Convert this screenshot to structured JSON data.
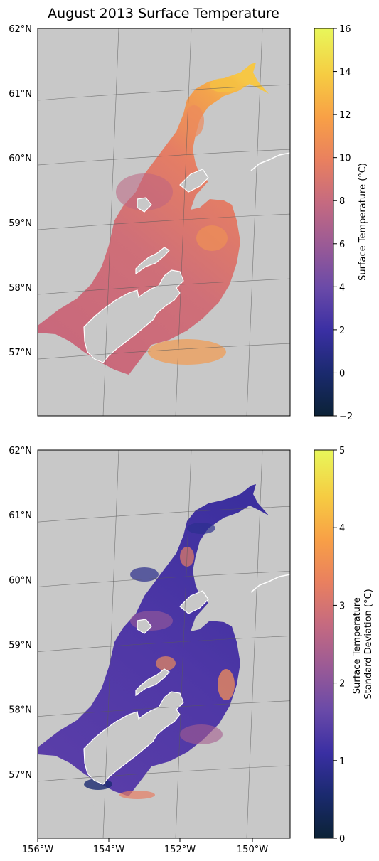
{
  "figure": {
    "title": "August 2013 Surface Temperature"
  },
  "axes": {
    "lat_ticks": [
      "62°N",
      "61°N",
      "60°N",
      "59°N",
      "58°N",
      "57°N"
    ],
    "lon_ticks": [
      "156°W",
      "154°W",
      "152°W",
      "150°W"
    ]
  },
  "panels": [
    {
      "id": "temperature",
      "colorbar": {
        "label_lines": [
          "Surface Temperature (°C)"
        ],
        "ticks": [
          "−2",
          "0",
          "2",
          "4",
          "6",
          "8",
          "10",
          "12",
          "14",
          "16"
        ],
        "vmin": -2,
        "vmax": 16
      }
    },
    {
      "id": "stddev",
      "colorbar": {
        "label_lines": [
          "Surface Temperature",
          "Standard Deviation (°C)"
        ],
        "ticks": [
          "0",
          "1",
          "2",
          "3",
          "4",
          "5"
        ],
        "vmin": 0,
        "vmax": 5
      }
    }
  ],
  "colors": {
    "land": "#c8c8c8",
    "cmap": [
      "#0b2236",
      "#1a2a6e",
      "#3a2fa3",
      "#6a4aa8",
      "#9a5a96",
      "#c56a80",
      "#e9805f",
      "#f8a046",
      "#f6cc42",
      "#e8f75a"
    ]
  }
}
